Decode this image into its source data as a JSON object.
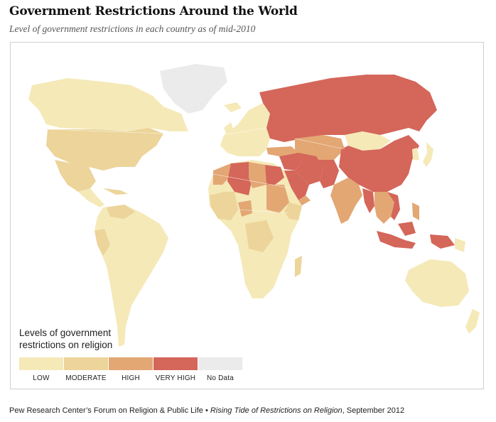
{
  "title": "Government Restrictions Around the World",
  "subtitle": "Level of government restrictions in each country as of mid-2010",
  "legend": {
    "title_line1": "Levels of government",
    "title_line2": "restrictions on religion",
    "levels": [
      {
        "label": "LOW",
        "color": "#f5e9b8"
      },
      {
        "label": "MODERATE",
        "color": "#ecd49a"
      },
      {
        "label": "HIGH",
        "color": "#e3a774"
      },
      {
        "label": "VERY HIGH",
        "color": "#d4665a"
      },
      {
        "label": "No Data",
        "color": "#ebebeb"
      }
    ]
  },
  "map": {
    "regions": [
      {
        "name": "Canada",
        "level": "LOW"
      },
      {
        "name": "Alaska",
        "level": "LOW"
      },
      {
        "name": "Greenland",
        "level": "No Data"
      },
      {
        "name": "United States",
        "level": "MODERATE"
      },
      {
        "name": "Mexico",
        "level": "MODERATE"
      },
      {
        "name": "South America",
        "level": "LOW"
      },
      {
        "name": "Venezuela",
        "level": "MODERATE"
      },
      {
        "name": "Europe",
        "level": "LOW"
      },
      {
        "name": "Russia",
        "level": "VERY HIGH"
      },
      {
        "name": "China",
        "level": "VERY HIGH"
      },
      {
        "name": "Mongolia",
        "level": "LOW"
      },
      {
        "name": "Central Asia",
        "level": "HIGH"
      },
      {
        "name": "Iran",
        "level": "VERY HIGH"
      },
      {
        "name": "Saudi Arabia",
        "level": "VERY HIGH"
      },
      {
        "name": "Egypt",
        "level": "VERY HIGH"
      },
      {
        "name": "Algeria",
        "level": "VERY HIGH"
      },
      {
        "name": "Libya",
        "level": "HIGH"
      },
      {
        "name": "India",
        "level": "HIGH"
      },
      {
        "name": "Southeast Asia",
        "level": "HIGH"
      },
      {
        "name": "Burma",
        "level": "VERY HIGH"
      },
      {
        "name": "Indonesia",
        "level": "VERY HIGH"
      },
      {
        "name": "Africa",
        "level": "LOW"
      },
      {
        "name": "Sudan",
        "level": "HIGH"
      },
      {
        "name": "Australia",
        "level": "LOW"
      },
      {
        "name": "Japan",
        "level": "LOW"
      }
    ]
  },
  "source": {
    "org": "Pew Research Center’s Forum on Religion & Public Life •",
    "report": "Rising Tide of Restrictions on Religion",
    "date": ", September 2012"
  }
}
